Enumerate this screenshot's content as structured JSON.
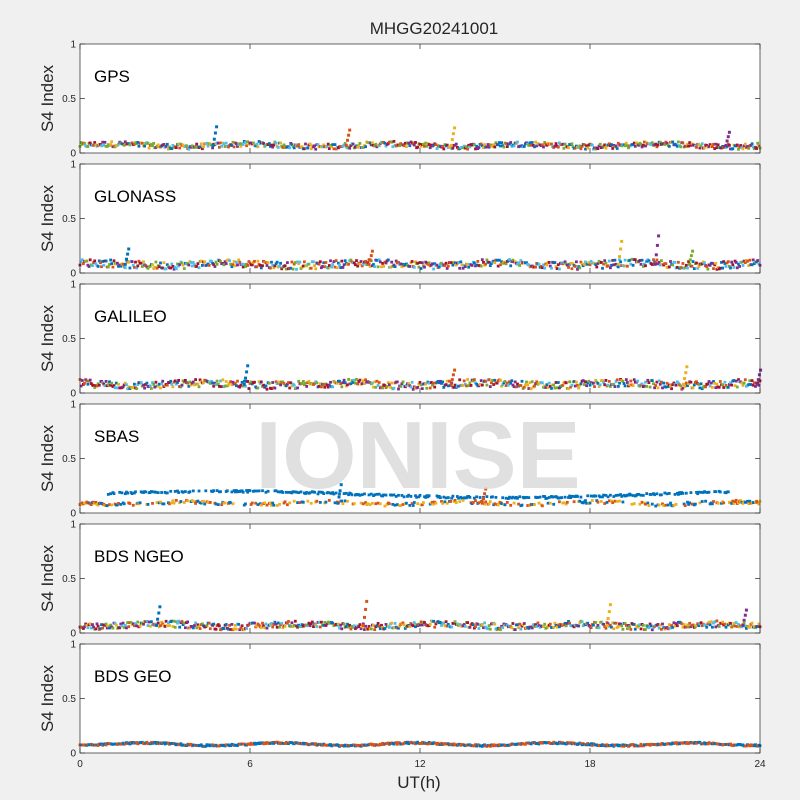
{
  "figure": {
    "title": "MHGG20241001",
    "watermark": "IONISE",
    "xlabel": "UT(h)",
    "ylabel": "S4 Index"
  },
  "colors": [
    "#0072BD",
    "#D95319",
    "#EDB120",
    "#7E2F8E",
    "#77AC30",
    "#4DBEEE",
    "#A2142F"
  ],
  "chart_data": [
    {
      "type": "scatter",
      "label": "GPS",
      "xlim": [
        0,
        24
      ],
      "ylim": [
        0,
        1
      ],
      "xticks": [
        0,
        6,
        12,
        18,
        24
      ],
      "yticks": [
        0,
        0.5,
        1
      ],
      "ytick_labels": [
        "0",
        "0.5",
        "1"
      ],
      "base": 0.07,
      "spread": 0.025,
      "spikes": [
        [
          4.7,
          0.24
        ],
        [
          9.4,
          0.21
        ],
        [
          13.1,
          0.23
        ],
        [
          22.8,
          0.19
        ]
      ],
      "series_count": 7
    },
    {
      "type": "scatter",
      "label": "GLONASS",
      "xlim": [
        0,
        24
      ],
      "ylim": [
        0,
        1
      ],
      "xticks": [
        0,
        6,
        12,
        18,
        24
      ],
      "yticks": [
        0,
        0.5,
        1
      ],
      "ytick_labels": [
        "0",
        "0.5",
        "1"
      ],
      "base": 0.08,
      "spread": 0.035,
      "spikes": [
        [
          1.6,
          0.22
        ],
        [
          10.2,
          0.2
        ],
        [
          19.0,
          0.29
        ],
        [
          20.3,
          0.34
        ],
        [
          21.5,
          0.2
        ]
      ],
      "series_count": 7
    },
    {
      "type": "scatter",
      "label": "GALILEO",
      "xlim": [
        0,
        24
      ],
      "ylim": [
        0,
        1
      ],
      "xticks": [
        0,
        6,
        12,
        18,
        24
      ],
      "yticks": [
        0,
        0.5,
        1
      ],
      "ytick_labels": [
        "0",
        "0.5",
        "1"
      ],
      "base": 0.08,
      "spread": 0.035,
      "spikes": [
        [
          5.8,
          0.25
        ],
        [
          13.1,
          0.21
        ],
        [
          21.3,
          0.24
        ],
        [
          23.9,
          0.21
        ]
      ],
      "series_count": 7
    },
    {
      "type": "scatter",
      "label": "SBAS",
      "xlim": [
        0,
        24
      ],
      "ylim": [
        0,
        1
      ],
      "xticks": [
        0,
        6,
        12,
        18,
        24
      ],
      "yticks": [
        0,
        0.5,
        1
      ],
      "ytick_labels": [
        "0",
        "0.5",
        "1"
      ],
      "base": 0.09,
      "spread": 0.015,
      "spikes": [
        [
          9.1,
          0.26
        ],
        [
          14.2,
          0.22
        ]
      ],
      "series_count": 3,
      "upper_band": 0.17
    },
    {
      "type": "scatter",
      "label": "BDS NGEO",
      "xlim": [
        0,
        24
      ],
      "ylim": [
        0,
        1
      ],
      "xticks": [
        0,
        6,
        12,
        18,
        24
      ],
      "yticks": [
        0,
        0.5,
        1
      ],
      "ytick_labels": [
        "0",
        "0.5",
        "1"
      ],
      "base": 0.07,
      "spread": 0.03,
      "spikes": [
        [
          2.7,
          0.24
        ],
        [
          10.0,
          0.29
        ],
        [
          18.6,
          0.26
        ],
        [
          23.4,
          0.21
        ]
      ],
      "series_count": 7
    },
    {
      "type": "scatter",
      "label": "BDS GEO",
      "xlim": [
        0,
        24
      ],
      "ylim": [
        0,
        1
      ],
      "xticks": [
        0,
        6,
        12,
        18,
        24
      ],
      "yticks": [
        0,
        0.5,
        1
      ],
      "ytick_labels": [
        "0",
        "0.5",
        "1"
      ],
      "base": 0.08,
      "spread": 0.008,
      "spikes": [],
      "series_count": 2
    }
  ]
}
